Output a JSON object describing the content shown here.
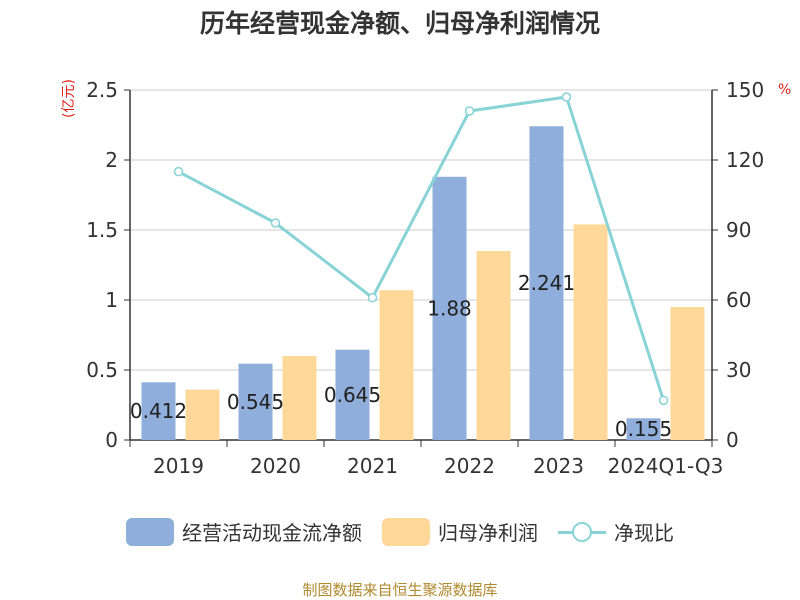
{
  "chart_data": {
    "type": "bar",
    "title": "历年经营现金净额、归母净利润情况",
    "y_left_unit": "(亿元)",
    "y_right_unit": "%",
    "categories": [
      "2019",
      "2020",
      "2021",
      "2022",
      "2023",
      "2024Q1-Q3"
    ],
    "ylim_left": [
      0,
      2.5
    ],
    "yticks_left": [
      "0",
      "0.5",
      "1",
      "1.5",
      "2",
      "2.5"
    ],
    "ylim_right": [
      0,
      150
    ],
    "yticks_right": [
      "0",
      "30",
      "60",
      "90",
      "120",
      "150"
    ],
    "grid": true,
    "legend_position": "bottom",
    "series": [
      {
        "name": "经营活动现金流净额",
        "type": "bar",
        "axis": "left",
        "color": "#8faedb",
        "values": [
          0.412,
          0.545,
          0.645,
          1.88,
          2.241,
          0.155
        ],
        "labels": [
          "0.412",
          "0.545",
          "0.645",
          "1.88",
          "2.241",
          "0.155"
        ]
      },
      {
        "name": "归母净利润",
        "type": "bar",
        "axis": "left",
        "color": "#fed898",
        "values": [
          0.36,
          0.6,
          1.07,
          1.35,
          1.54,
          0.95
        ]
      },
      {
        "name": "净现比",
        "type": "line",
        "axis": "right",
        "color": "#88d3d6",
        "values": [
          115,
          93,
          61,
          141,
          147,
          17
        ]
      }
    ],
    "source": "制图数据来自恒生聚源数据库"
  }
}
